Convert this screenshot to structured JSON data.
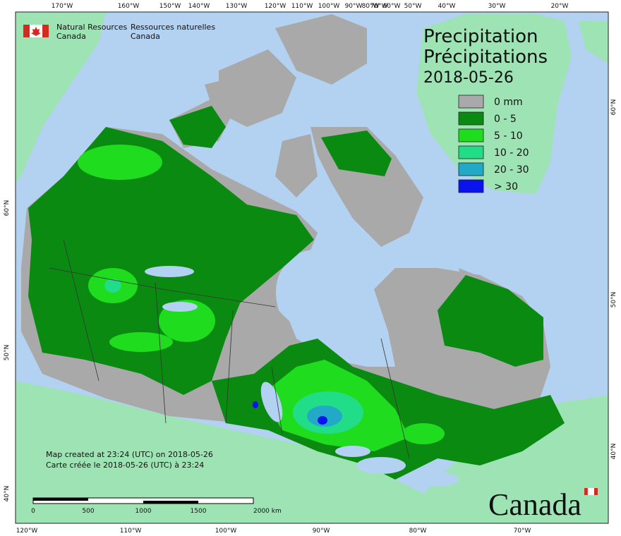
{
  "agency": {
    "en": [
      "Natural Resources",
      "Canada"
    ],
    "fr": [
      "Ressources naturelles",
      "Canada"
    ]
  },
  "title": [
    "Precipitation",
    "Précipitations"
  ],
  "date": "2018-05-26",
  "legend": [
    {
      "label": "0 mm",
      "color": "#a9a9a9"
    },
    {
      "label": "0 - 5",
      "color": "#0b8a12"
    },
    {
      "label": "5 - 10",
      "color": "#1fdc1f"
    },
    {
      "label": "10 - 20",
      "color": "#22dd88"
    },
    {
      "label": "20 - 30",
      "color": "#22a9c8"
    },
    {
      "label": "> 30",
      "color": "#0a12ee"
    }
  ],
  "graticule": {
    "top": [
      "170°W",
      "160°W",
      "150°W",
      "140°W",
      "130°W",
      "120°W",
      "110°W",
      "100°W",
      "90°W",
      "80°W",
      "70°W",
      "60°W",
      "50°W",
      "40°W",
      "30°W",
      "20°W"
    ],
    "bottom": [
      "120°W",
      "110°W",
      "100°W",
      "90°W",
      "80°W",
      "70°W"
    ],
    "left": [
      "60°N",
      "50°N",
      "40°N"
    ],
    "right": [
      "60°N",
      "50°N",
      "40°N"
    ]
  },
  "scale": [
    "0",
    "500",
    "1000",
    "1500",
    "2000 km"
  ],
  "credits": [
    "Map created at 23:24 (UTC) on 2018-05-26",
    "Carte créée le 2018-05-26 (UTC) à 23:24"
  ],
  "wordmark": "Canada"
}
